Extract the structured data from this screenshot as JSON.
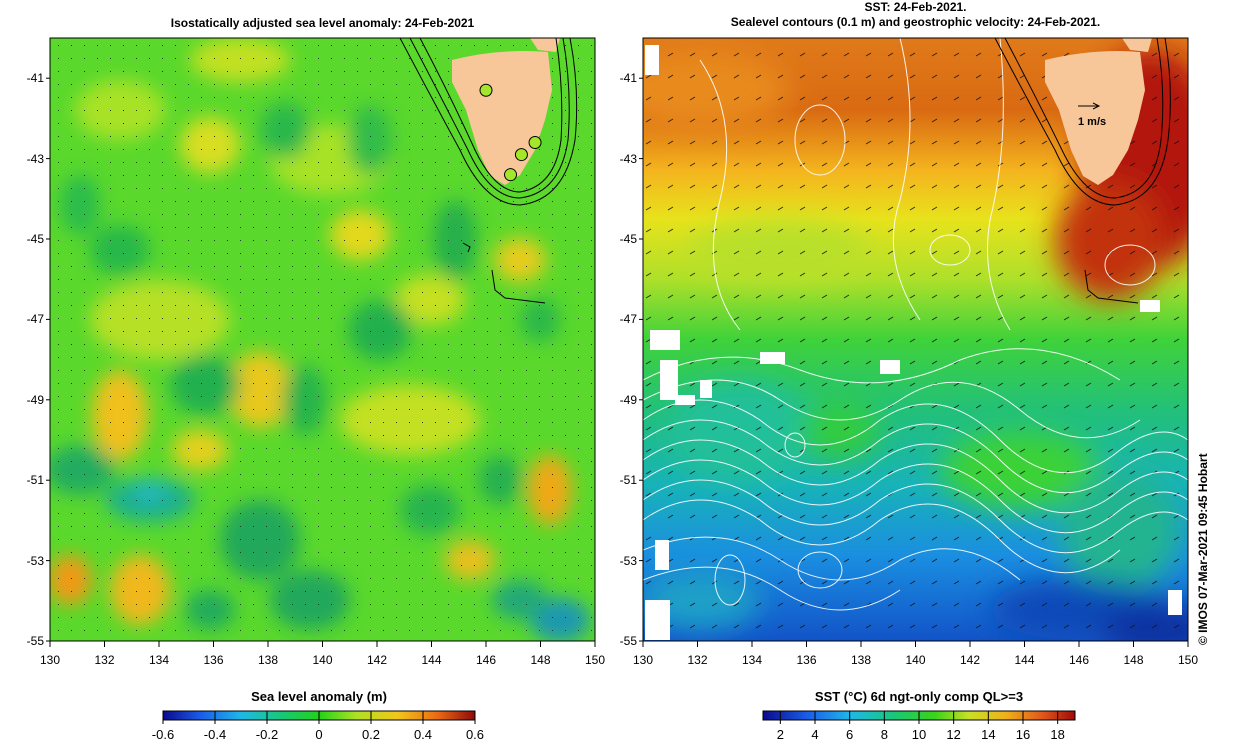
{
  "left_panel": {
    "title": "Isostatically adjusted sea level anomaly: 24-Feb-2021",
    "y_ticks": [
      "-41",
      "-43",
      "-45",
      "-47",
      "-49",
      "-51",
      "-53",
      "-55"
    ],
    "x_ticks": [
      "130",
      "132",
      "134",
      "136",
      "138",
      "140",
      "142",
      "144",
      "146",
      "148",
      "150"
    ],
    "colorbar": {
      "title": "Sea level anomaly (m)",
      "ticks": [
        "-0.6",
        "-0.4",
        "-0.2",
        "0",
        "0.2",
        "0.4",
        "0.6"
      ],
      "range": [
        -0.6,
        0.6
      ]
    },
    "markers": [
      {
        "lon": 146.0,
        "lat": -41.3
      },
      {
        "lon": 147.8,
        "lat": -42.6
      },
      {
        "lon": 147.3,
        "lat": -42.9
      },
      {
        "lon": 146.9,
        "lat": -43.4
      }
    ]
  },
  "right_panel": {
    "title_line1": "SST: 24-Feb-2021.",
    "title_line2": "Sealevel contours (0.1 m) and geostrophic velocity: 24-Feb-2021.",
    "velocity_scale_label": "1 m/s",
    "y_ticks": [
      "-41",
      "-43",
      "-45",
      "-47",
      "-49",
      "-51",
      "-53",
      "-55"
    ],
    "x_ticks": [
      "130",
      "132",
      "134",
      "136",
      "138",
      "140",
      "142",
      "144",
      "146",
      "148",
      "150"
    ],
    "colorbar": {
      "title": "SST (°C) 6d ngt-only comp QL>=3",
      "ticks": [
        "2",
        "4",
        "6",
        "8",
        "10",
        "12",
        "14",
        "16",
        "18"
      ],
      "range": [
        1,
        19
      ]
    }
  },
  "map_extent": {
    "lon": [
      130,
      150
    ],
    "lat": [
      -55,
      -40
    ]
  },
  "credit": "© IMOS 07-Mar-2021 09:45 Hobart",
  "colors": {
    "land": "#f7c79a",
    "sla_base": "#55d82e",
    "sst_warm": "#d0450f",
    "sst_cold": "#0a3fc4"
  }
}
